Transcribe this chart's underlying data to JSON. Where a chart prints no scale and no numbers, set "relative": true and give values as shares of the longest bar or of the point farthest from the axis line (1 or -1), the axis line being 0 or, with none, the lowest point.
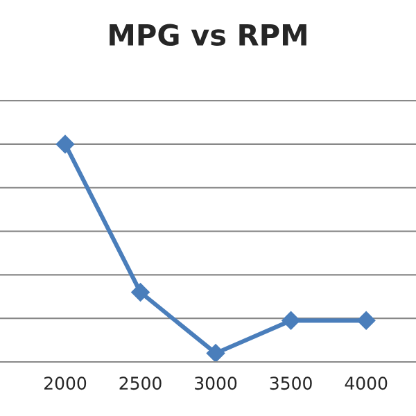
{
  "chart_data": {
    "type": "line",
    "title": "MPG vs RPM",
    "relative": true,
    "x": [
      2000,
      2500,
      3000,
      3500,
      4000
    ],
    "series": [
      {
        "color": "#4a7ebb",
        "values": [
          1,
          0.32,
          0.04,
          0.19,
          0.19
        ]
      }
    ],
    "xlim": [
      1567,
      4331
    ],
    "xticks": [
      2000,
      2500,
      3000,
      3500,
      4000
    ],
    "grid": "y",
    "marker": "diamond",
    "line_style": "solid",
    "legend": false
  }
}
